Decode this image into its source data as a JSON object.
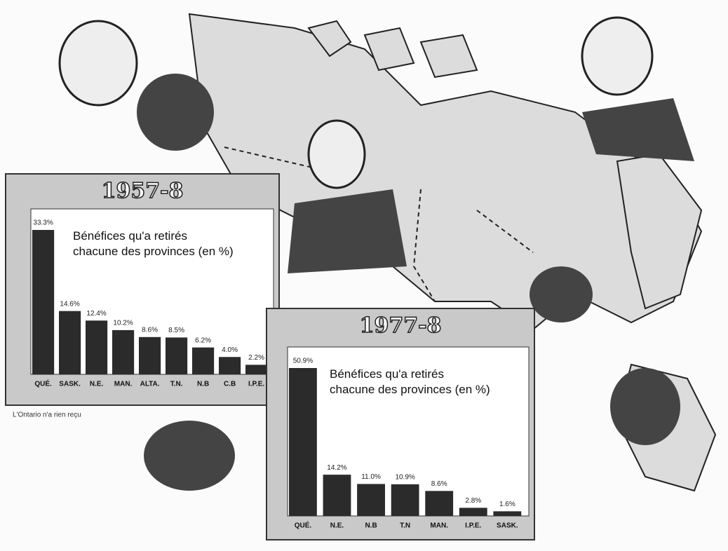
{
  "chart_data": [
    {
      "type": "bar",
      "title": "1957-8",
      "subtitle": "Bénéfices qu'a retirés chacune des provinces (en %)",
      "categories": [
        "QUÉ.",
        "SASK.",
        "N.E.",
        "MAN.",
        "ALTA.",
        "T.N.",
        "N.B",
        "C.B",
        "I.P.E."
      ],
      "values": [
        33.3,
        14.6,
        12.4,
        10.2,
        8.6,
        8.5,
        6.2,
        4.0,
        2.2
      ],
      "value_labels": [
        "33.3%",
        "14.6%",
        "12.4%",
        "10.2%",
        "8.6%",
        "8.5%",
        "6.2%",
        "4.0%",
        "2.2%"
      ],
      "color": "#2b2b2b",
      "note": "L'Ontario n'a rien reçu"
    },
    {
      "type": "bar",
      "title": "1977-8",
      "subtitle": "Bénéfices qu'a retirés chacune des provinces (en %)",
      "categories": [
        "QUÉ.",
        "N.E.",
        "N.B",
        "T.N",
        "MAN.",
        "I.P.E.",
        "SASK."
      ],
      "values": [
        50.9,
        14.2,
        11.0,
        10.9,
        8.6,
        2.8,
        1.6
      ],
      "value_labels": [
        "50.9%",
        "14.2%",
        "11.0%",
        "10.9%",
        "8.6%",
        "2.8%",
        "1.6%"
      ],
      "color": "#2b2b2b"
    }
  ]
}
